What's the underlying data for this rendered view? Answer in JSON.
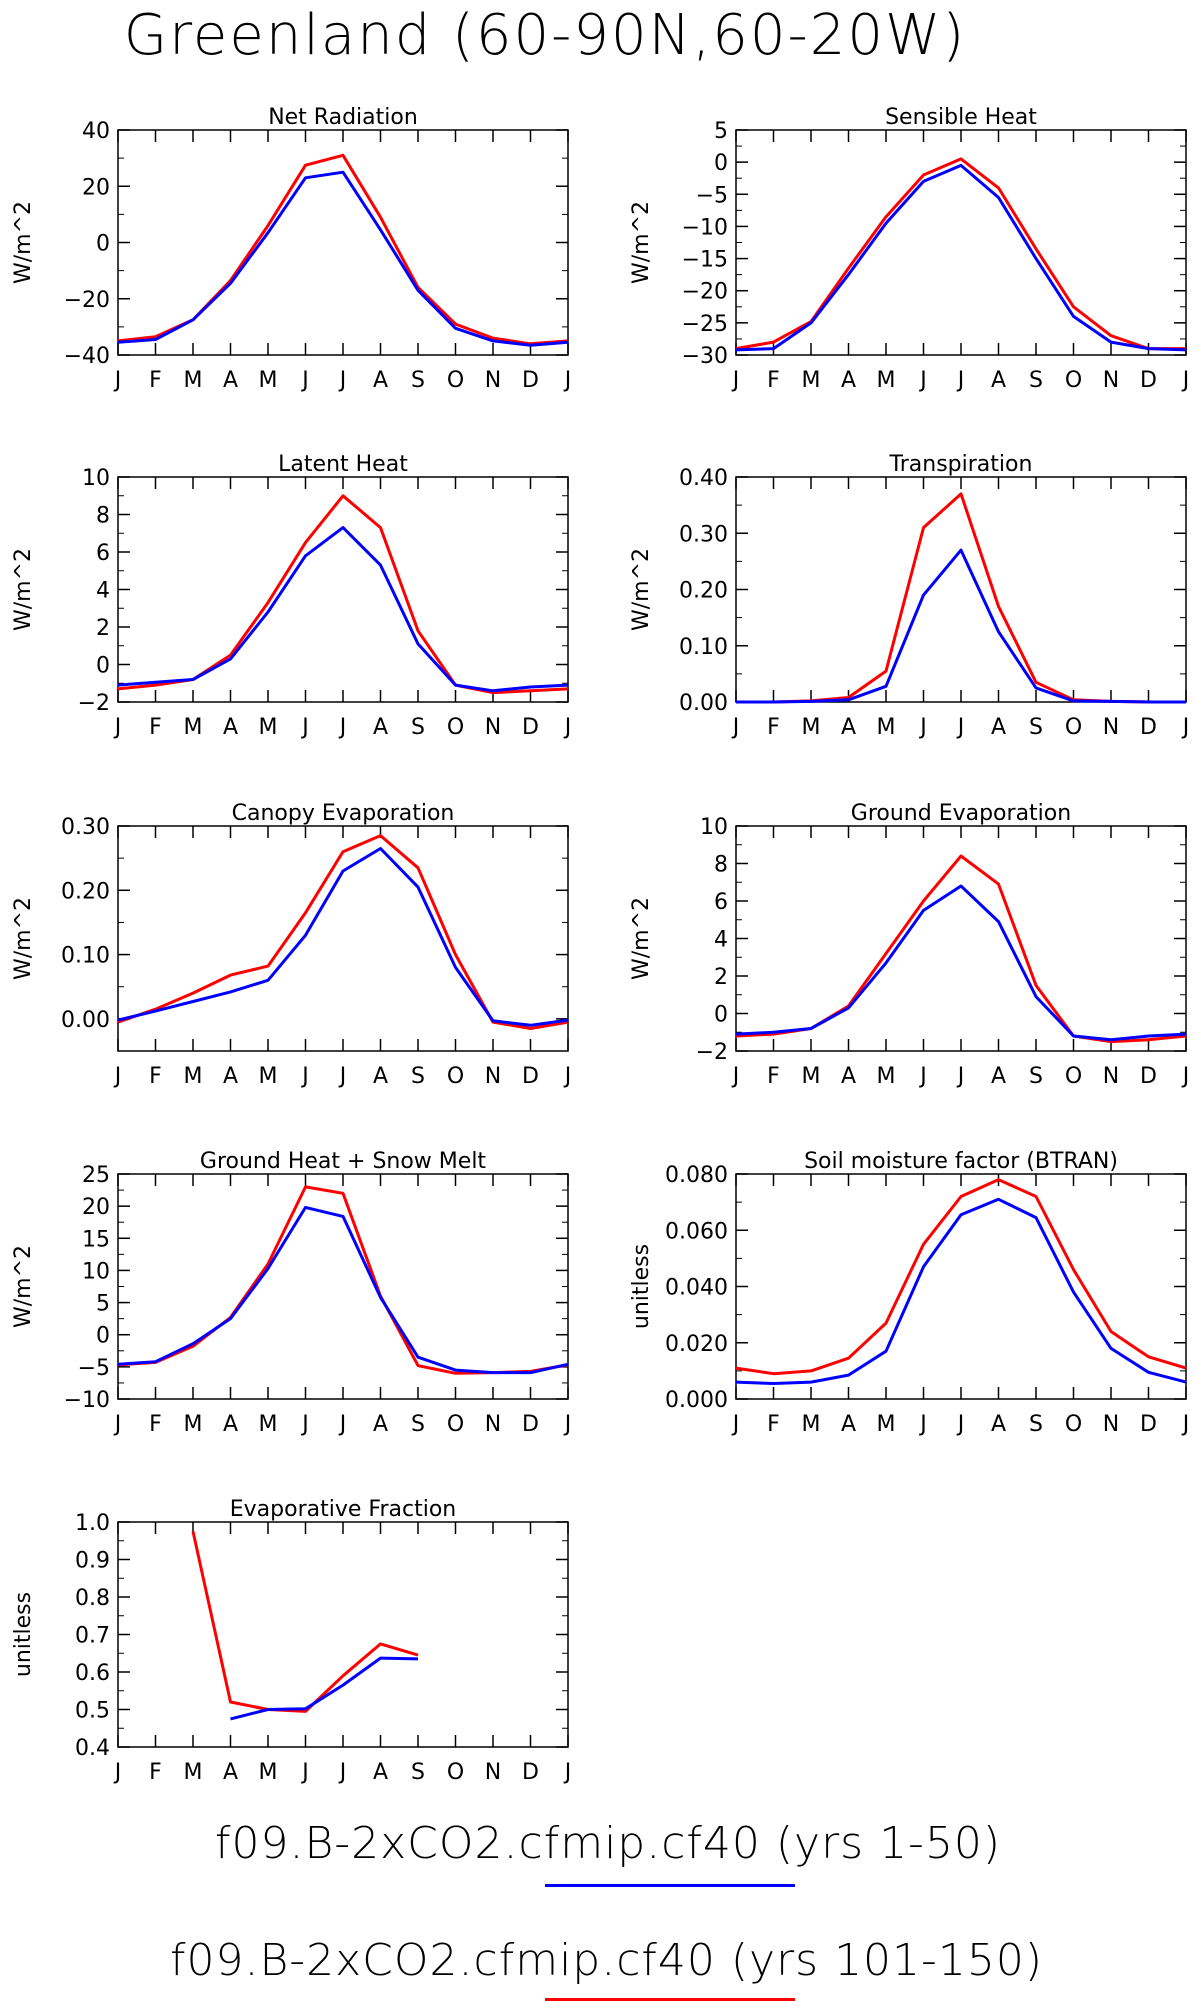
{
  "title": "Greenland (60-90N,60-20W)",
  "months": [
    "J",
    "F",
    "M",
    "A",
    "M",
    "J",
    "J",
    "A",
    "S",
    "O",
    "N",
    "D",
    "J"
  ],
  "legend": [
    {
      "label": "f09.B-2xCO2.cfmip.cf40 (yrs 1-50)",
      "color": "#0000ff"
    },
    {
      "label": "f09.B-2xCO2.cfmip.cf40 (yrs 101-150)",
      "color": "#ff0000"
    }
  ],
  "chart_data": [
    {
      "type": "line",
      "title": "Net Radiation",
      "ylabel": "W/m^2",
      "ylim": [
        -40,
        40
      ],
      "yticks": [
        -40,
        -20,
        0,
        20,
        40
      ],
      "yticklabels": [
        "−40",
        "−20",
        "0",
        "20",
        "40"
      ],
      "series": [
        {
          "color": "#ff0000",
          "values": [
            -35,
            -33.5,
            -27.5,
            -13.5,
            6,
            27.5,
            31,
            9,
            -16,
            -29,
            -34,
            -36,
            -35
          ]
        },
        {
          "color": "#0000ff",
          "values": [
            -35.5,
            -34.5,
            -27.5,
            -14.5,
            3.5,
            23,
            25,
            4.5,
            -17,
            -30.5,
            -35,
            -36.5,
            -35.5
          ]
        }
      ]
    },
    {
      "type": "line",
      "title": "Sensible Heat",
      "ylabel": "W/m^2",
      "ylim": [
        -30,
        5
      ],
      "yticks": [
        -30,
        -25,
        -20,
        -15,
        -10,
        -5,
        0,
        5
      ],
      "yticklabels": [
        "−30",
        "−25",
        "−20",
        "−15",
        "−10",
        "−5",
        "0",
        "5"
      ],
      "series": [
        {
          "color": "#ff0000",
          "values": [
            -29,
            -28,
            -24.8,
            -16.5,
            -8.5,
            -2,
            0.5,
            -4,
            -13.5,
            -22.5,
            -27,
            -29,
            -29
          ]
        },
        {
          "color": "#0000ff",
          "values": [
            -29.2,
            -29,
            -25,
            -17.5,
            -9.5,
            -3,
            -0.5,
            -5.5,
            -15,
            -24,
            -28,
            -29,
            -29.2
          ]
        }
      ]
    },
    {
      "type": "line",
      "title": "Latent Heat",
      "ylabel": "W/m^2",
      "ylim": [
        -2,
        10
      ],
      "yticks": [
        -2,
        0,
        2,
        4,
        6,
        8,
        10
      ],
      "yticklabels": [
        "−2",
        "0",
        "2",
        "4",
        "6",
        "8",
        "10"
      ],
      "series": [
        {
          "color": "#ff0000",
          "values": [
            -1.3,
            -1.1,
            -0.8,
            0.5,
            3.3,
            6.5,
            9,
            7.3,
            1.8,
            -1.1,
            -1.5,
            -1.4,
            -1.3
          ]
        },
        {
          "color": "#0000ff",
          "values": [
            -1.1,
            -0.95,
            -0.8,
            0.3,
            2.8,
            5.8,
            7.3,
            5.3,
            1.1,
            -1.1,
            -1.4,
            -1.2,
            -1.1
          ]
        }
      ]
    },
    {
      "type": "line",
      "title": "Transpiration",
      "ylabel": "W/m^2",
      "ylim": [
        0,
        0.4
      ],
      "yticks": [
        0,
        0.1,
        0.2,
        0.3,
        0.4
      ],
      "yticklabels": [
        "0.00",
        "0.10",
        "0.20",
        "0.30",
        "0.40"
      ],
      "series": [
        {
          "color": "#ff0000",
          "values": [
            0,
            0,
            0.002,
            0.008,
            0.055,
            0.31,
            0.37,
            0.17,
            0.035,
            0.004,
            0.001,
            0,
            0
          ]
        },
        {
          "color": "#0000ff",
          "values": [
            0,
            0,
            0.001,
            0.004,
            0.028,
            0.19,
            0.27,
            0.125,
            0.025,
            0.002,
            0.001,
            0,
            0
          ]
        }
      ]
    },
    {
      "type": "line",
      "title": "Canopy Evaporation",
      "ylabel": "W/m^2",
      "ylim": [
        -0.05,
        0.3
      ],
      "yticks": [
        0,
        0.1,
        0.2,
        0.3
      ],
      "yticklabels": [
        "0.00",
        "0.10",
        "0.20",
        "0.30"
      ],
      "series": [
        {
          "color": "#ff0000",
          "values": [
            -0.005,
            0.015,
            0.04,
            0.068,
            0.082,
            0.165,
            0.26,
            0.285,
            0.235,
            0.1,
            -0.005,
            -0.015,
            -0.005
          ]
        },
        {
          "color": "#0000ff",
          "values": [
            -0.002,
            0.012,
            0.027,
            0.042,
            0.06,
            0.13,
            0.23,
            0.265,
            0.205,
            0.08,
            -0.003,
            -0.01,
            -0.002
          ]
        }
      ]
    },
    {
      "type": "line",
      "title": "Ground Evaporation",
      "ylabel": "W/m^2",
      "ylim": [
        -2,
        10
      ],
      "yticks": [
        -2,
        0,
        2,
        4,
        6,
        8,
        10
      ],
      "yticklabels": [
        "−2",
        "0",
        "2",
        "4",
        "6",
        "8",
        "10"
      ],
      "series": [
        {
          "color": "#ff0000",
          "values": [
            -1.2,
            -1.1,
            -0.8,
            0.4,
            3.2,
            6,
            8.4,
            6.9,
            1.5,
            -1.2,
            -1.5,
            -1.4,
            -1.2
          ]
        },
        {
          "color": "#0000ff",
          "values": [
            -1.1,
            -1,
            -0.8,
            0.3,
            2.7,
            5.5,
            6.8,
            4.9,
            0.9,
            -1.2,
            -1.4,
            -1.2,
            -1.1
          ]
        }
      ]
    },
    {
      "type": "line",
      "title": "Ground Heat + Snow Melt",
      "ylabel": "W/m^2",
      "ylim": [
        -10,
        25
      ],
      "yticks": [
        -10,
        -5,
        0,
        5,
        10,
        15,
        20,
        25
      ],
      "yticklabels": [
        "−10",
        "−5",
        "0",
        "5",
        "10",
        "15",
        "20",
        "25"
      ],
      "series": [
        {
          "color": "#ff0000",
          "values": [
            -4.7,
            -4.3,
            -1.8,
            2.7,
            11,
            23,
            22,
            6,
            -4.8,
            -6,
            -5.9,
            -5.7,
            -4.7
          ]
        },
        {
          "color": "#0000ff",
          "values": [
            -4.6,
            -4.2,
            -1.4,
            2.5,
            10.3,
            19.8,
            18.4,
            5.8,
            -3.5,
            -5.5,
            -5.9,
            -5.9,
            -4.6
          ]
        }
      ]
    },
    {
      "type": "line",
      "title": "Soil moisture factor (BTRAN)",
      "ylabel": "unitless",
      "ylim": [
        0,
        0.08
      ],
      "yticks": [
        0,
        0.02,
        0.04,
        0.06,
        0.08
      ],
      "yticklabels": [
        "0.000",
        "0.020",
        "0.040",
        "0.060",
        "0.080"
      ],
      "series": [
        {
          "color": "#ff0000",
          "values": [
            0.011,
            0.009,
            0.01,
            0.0145,
            0.027,
            0.055,
            0.072,
            0.078,
            0.072,
            0.046,
            0.024,
            0.015,
            0.011
          ]
        },
        {
          "color": "#0000ff",
          "values": [
            0.006,
            0.0055,
            0.006,
            0.0085,
            0.017,
            0.047,
            0.0655,
            0.071,
            0.0645,
            0.038,
            0.018,
            0.0095,
            0.006
          ]
        }
      ]
    },
    {
      "type": "line",
      "title": "Evaporative Fraction",
      "ylabel": "unitless",
      "ylim": [
        0.4,
        1.0
      ],
      "yticks": [
        0.4,
        0.5,
        0.6,
        0.7,
        0.8,
        0.9,
        1.0
      ],
      "yticklabels": [
        "0.4",
        "0.5",
        "0.6",
        "0.7",
        "0.8",
        "0.9",
        "1.0"
      ],
      "series": [
        {
          "color": "#ff0000",
          "values": [
            null,
            null,
            0.975,
            0.52,
            0.5,
            0.495,
            0.59,
            0.675,
            0.645,
            null,
            null,
            null,
            null
          ]
        },
        {
          "color": "#0000ff",
          "values": [
            null,
            null,
            null,
            0.475,
            0.5,
            0.502,
            0.565,
            0.637,
            0.635,
            null,
            null,
            null,
            null
          ]
        }
      ]
    }
  ]
}
